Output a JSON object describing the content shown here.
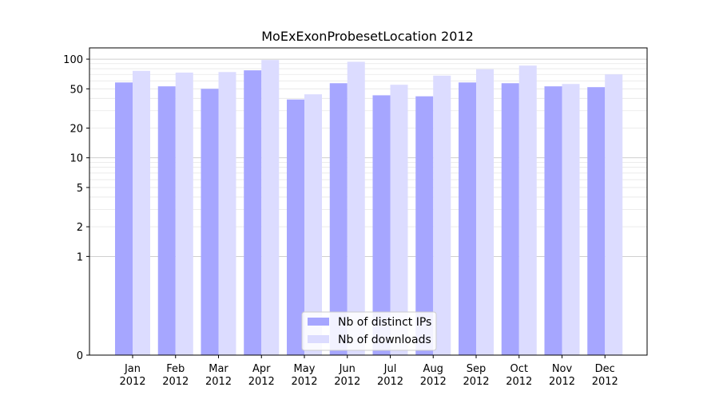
{
  "chart_data": {
    "type": "bar",
    "title": "MoExExonProbesetLocation 2012",
    "xlabel": "",
    "ylabel": "",
    "yscale": "symlog",
    "ylim": [
      0,
      130
    ],
    "yticks": [
      0,
      1,
      2,
      5,
      10,
      20,
      50,
      100
    ],
    "grid": true,
    "legend_position": "bottom-center",
    "categories": [
      [
        "Jan",
        "2012"
      ],
      [
        "Feb",
        "2012"
      ],
      [
        "Mar",
        "2012"
      ],
      [
        "Apr",
        "2012"
      ],
      [
        "May",
        "2012"
      ],
      [
        "Jun",
        "2012"
      ],
      [
        "Jul",
        "2012"
      ],
      [
        "Aug",
        "2012"
      ],
      [
        "Sep",
        "2012"
      ],
      [
        "Oct",
        "2012"
      ],
      [
        "Nov",
        "2012"
      ],
      [
        "Dec",
        "2012"
      ]
    ],
    "series": [
      {
        "name": "Nb of distinct IPs",
        "color": "#a6a6ff",
        "values": [
          58,
          53,
          50,
          77,
          39,
          57,
          43,
          42,
          58,
          57,
          53,
          52
        ]
      },
      {
        "name": "Nb of downloads",
        "color": "#dcdcff",
        "values": [
          76,
          73,
          74,
          98,
          44,
          94,
          55,
          68,
          79,
          86,
          56,
          70
        ]
      }
    ]
  }
}
